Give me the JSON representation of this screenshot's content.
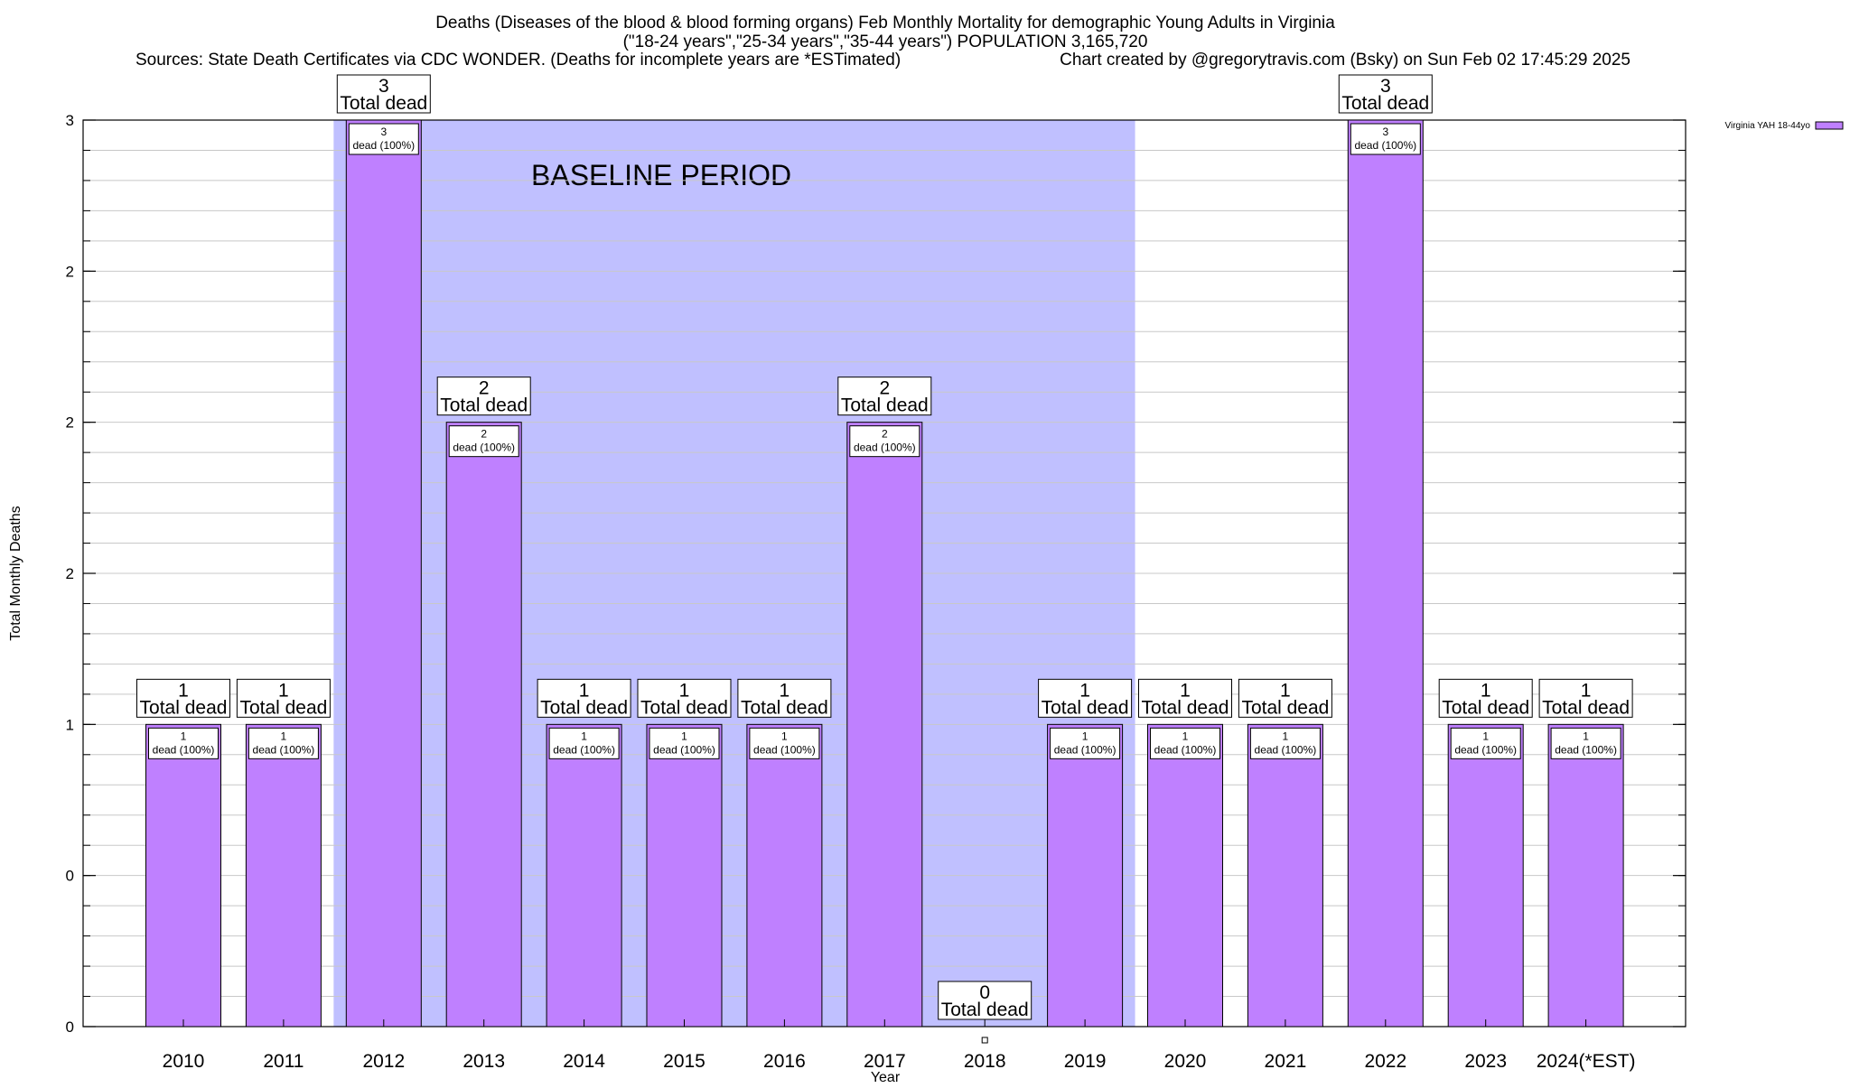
{
  "chart_data": {
    "type": "bar",
    "title_lines": [
      "Deaths (Diseases of the blood & blood forming organs) Feb Monthly Mortality for demographic Young Adults in Virginia",
      "(\"18-24 years\",\"25-34 years\",\"35-44 years\") POPULATION 3,165,720"
    ],
    "source_note": "Sources: State Death Certificates via CDC WONDER. (Deaths for incomplete years are *ESTimated)",
    "credit": "Chart created by @gregorytravis.com (Bsky) on Sun Feb 02 17:45:29 2025",
    "xlabel": "Year",
    "ylabel": "Total Monthly Deaths",
    "ylim": [
      0,
      3
    ],
    "y_tick_values": [
      0,
      0.5,
      1,
      1.5,
      2,
      2.5,
      3
    ],
    "y_tick_labels": [
      "0",
      "0",
      "1",
      "2",
      "2",
      "2",
      "3"
    ],
    "grid": true,
    "categories": [
      "2010",
      "2011",
      "2012",
      "2013",
      "2014",
      "2015",
      "2016",
      "2017",
      "2018",
      "2019",
      "2020",
      "2021",
      "2022",
      "2023",
      "2024(*EST)"
    ],
    "series": [
      {
        "name": "Virginia YAH 18-44yo",
        "color": "#bf80ff",
        "values": [
          1,
          1,
          3,
          2,
          1,
          1,
          1,
          2,
          0,
          1,
          1,
          1,
          3,
          1,
          1
        ],
        "top_labels": [
          "1",
          "1",
          "3",
          "2",
          "1",
          "1",
          "1",
          "2",
          "0",
          "1",
          "1",
          "1",
          "3",
          "1",
          "1"
        ],
        "inner_labels": [
          "1",
          "1",
          "3",
          "2",
          "1",
          "1",
          "1",
          "2",
          "",
          "1",
          "1",
          "1",
          "3",
          "1",
          "1"
        ]
      }
    ],
    "top_label_suffix": "Total dead",
    "inner_label_suffix": "dead (100%)",
    "baseline_band": {
      "label": "BASELINE PERIOD",
      "from": "2012",
      "to": "2019",
      "color": "#c0c0ff"
    },
    "legend_position": "top-right"
  }
}
